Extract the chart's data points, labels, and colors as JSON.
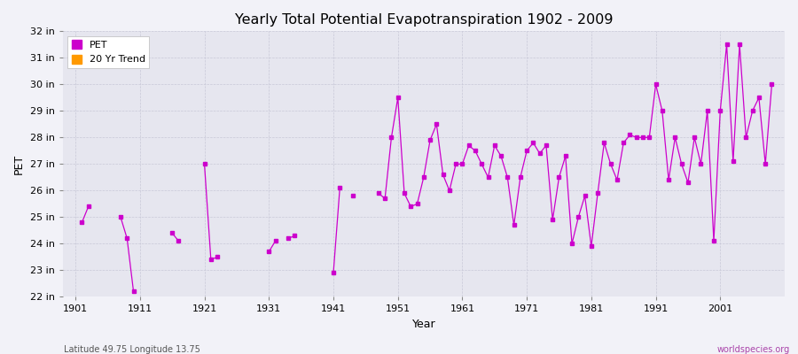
{
  "title": "Yearly Total Potential Evapotranspiration 1902 - 2009",
  "xlabel": "Year",
  "ylabel": "PET",
  "subtitle_left": "Latitude 49.75 Longitude 13.75",
  "subtitle_right": "worldspecies.org",
  "background_color": "#f2f2f8",
  "plot_bg_color": "#e6e6ef",
  "line_color": "#cc00cc",
  "trend_color": "#ff9900",
  "ylim": [
    22,
    32
  ],
  "ytick_labels": [
    "22 in",
    "23 in",
    "24 in",
    "25 in",
    "26 in",
    "27 in",
    "28 in",
    "29 in",
    "30 in",
    "31 in",
    "32 in"
  ],
  "ytick_values": [
    22,
    23,
    24,
    25,
    26,
    27,
    28,
    29,
    30,
    31,
    32
  ],
  "xtick_values": [
    1901,
    1911,
    1921,
    1931,
    1941,
    1951,
    1961,
    1971,
    1981,
    1991,
    2001
  ],
  "xlim": [
    1899,
    2011
  ],
  "years": [
    1902,
    1903,
    1904,
    1905,
    1906,
    1907,
    1908,
    1909,
    1910,
    1911,
    1912,
    1913,
    1914,
    1915,
    1916,
    1917,
    1918,
    1919,
    1920,
    1921,
    1922,
    1923,
    1924,
    1925,
    1926,
    1927,
    1928,
    1929,
    1930,
    1931,
    1932,
    1933,
    1934,
    1935,
    1936,
    1937,
    1938,
    1939,
    1940,
    1941,
    1942,
    1943,
    1944,
    1945,
    1946,
    1947,
    1948,
    1949,
    1950,
    1951,
    1952,
    1953,
    1954,
    1955,
    1956,
    1957,
    1958,
    1959,
    1960,
    1961,
    1962,
    1963,
    1964,
    1965,
    1966,
    1967,
    1968,
    1969,
    1970,
    1971,
    1972,
    1973,
    1974,
    1975,
    1976,
    1977,
    1978,
    1979,
    1980,
    1981,
    1982,
    1983,
    1984,
    1985,
    1986,
    1987,
    1988,
    1989,
    1990,
    1991,
    1992,
    1993,
    1994,
    1995,
    1996,
    1997,
    1998,
    1999,
    2000,
    2001,
    2002,
    2003,
    2004,
    2005,
    2006,
    2007,
    2008,
    2009
  ],
  "values": [
    24.8,
    null,
    null,
    null,
    null,
    null,
    null,
    null,
    25.4,
    24.2,
    22.2,
    null,
    null,
    null,
    null,
    null,
    null,
    null,
    null,
    24.4,
    27.0,
    null,
    null,
    null,
    null,
    null,
    null,
    null,
    null,
    23.4,
    null,
    null,
    null,
    null,
    null,
    null,
    null,
    null,
    null,
    null,
    null,
    null,
    null,
    null,
    null,
    null,
    null,
    null,
    null,
    24.1,
    null,
    null,
    null,
    null,
    null,
    null,
    null,
    null,
    null,
    null,
    null,
    null,
    null,
    null,
    null,
    null,
    null,
    null,
    null,
    null,
    null,
    null,
    null,
    null,
    null,
    null,
    null,
    null,
    null,
    null,
    null,
    null,
    null,
    null,
    null,
    null,
    null,
    null,
    null,
    null,
    null,
    null,
    null,
    null,
    null,
    null,
    null,
    null,
    null,
    null,
    null,
    null,
    null,
    null,
    null,
    null,
    null,
    null
  ]
}
